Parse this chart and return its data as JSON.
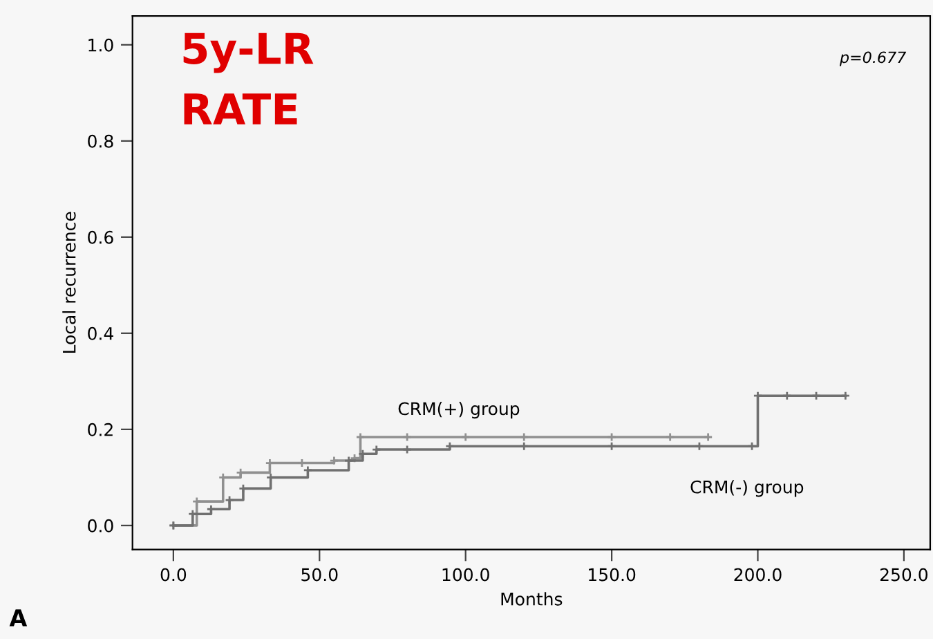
{
  "chart_data": {
    "type": "step",
    "xlabel": "Months",
    "ylabel": "Local recurrence",
    "xlim": [
      -14,
      259
    ],
    "ylim": [
      -0.05,
      1.06
    ],
    "xticks": [
      {
        "value": 0,
        "label": "0.0"
      },
      {
        "value": 50,
        "label": "50.0"
      },
      {
        "value": 100,
        "label": "100.0"
      },
      {
        "value": 150,
        "label": "150.0"
      },
      {
        "value": 200,
        "label": "200.0"
      },
      {
        "value": 250,
        "label": "250.0"
      }
    ],
    "yticks": [
      {
        "value": 0,
        "label": "0.0"
      },
      {
        "value": 0.2,
        "label": "0.2"
      },
      {
        "value": 0.4,
        "label": "0.4"
      },
      {
        "value": 0.6,
        "label": "0.6"
      },
      {
        "value": 0.8,
        "label": "0.8"
      },
      {
        "value": 1.0,
        "label": "1.0"
      }
    ],
    "grid": false,
    "legend": false,
    "marker": "cross",
    "line_style": "solid",
    "series": [
      {
        "name": "CRM(+) group",
        "color": "#909090",
        "x": [
          0,
          8,
          17,
          23,
          33,
          44,
          55,
          62,
          64,
          80,
          100,
          120,
          150,
          170,
          183
        ],
        "values": [
          0,
          0.05,
          0.1,
          0.11,
          0.13,
          0.13,
          0.135,
          0.14,
          0.184,
          0.184,
          0.184,
          0.184,
          0.184,
          0.184,
          0.184
        ]
      },
      {
        "name": "CRM(-) group",
        "color": "#707070",
        "x": [
          0,
          6.6,
          12.9,
          19.2,
          23.9,
          33.3,
          46,
          60,
          64.8,
          69.5,
          80,
          94.6,
          120,
          150,
          180,
          198,
          200,
          210,
          220,
          230
        ],
        "values": [
          0,
          0.024,
          0.034,
          0.053,
          0.077,
          0.1,
          0.115,
          0.135,
          0.149,
          0.158,
          0.158,
          0.165,
          0.165,
          0.165,
          0.165,
          0.165,
          0.27,
          0.27,
          0.27,
          0.27
        ]
      }
    ],
    "annotations": [
      "5y-LR\nRATE",
      "p=0.677",
      "A"
    ]
  }
}
